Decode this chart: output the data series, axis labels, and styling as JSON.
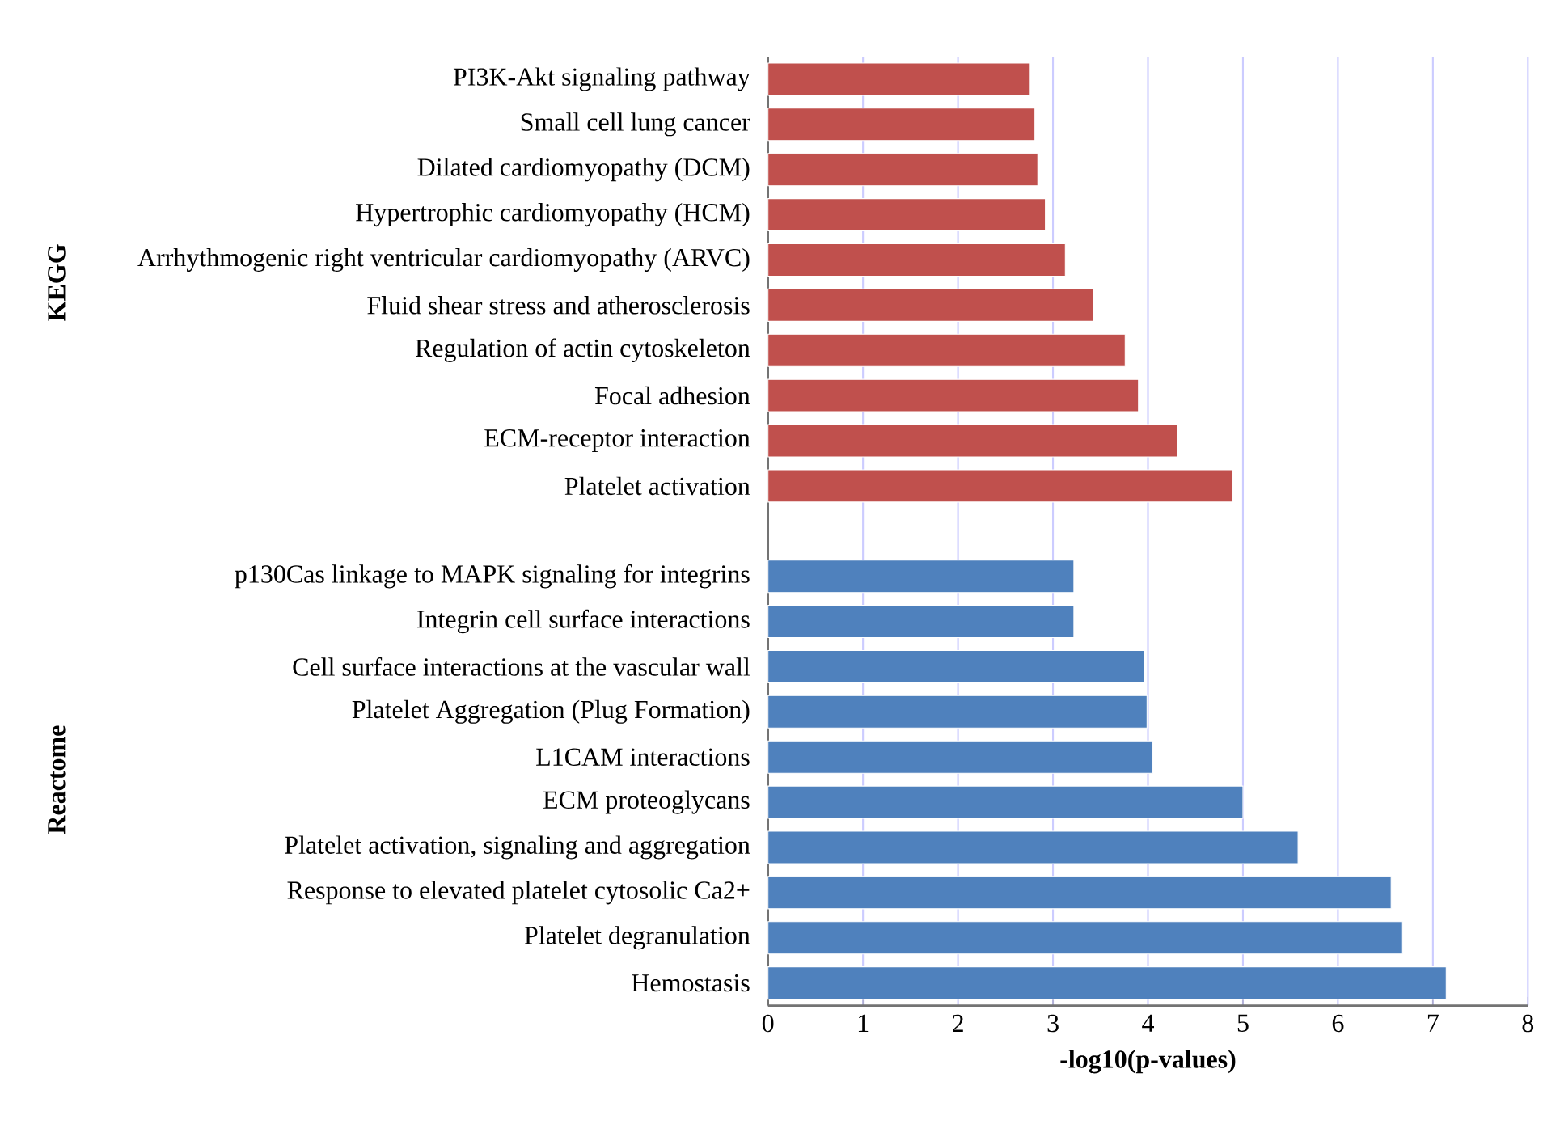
{
  "chart_data": {
    "type": "bar",
    "orientation": "horizontal",
    "xlabel": "-log10(p-values)",
    "categories": [
      "PI3K-Akt signaling pathway",
      "Small cell lung cancer",
      "Dilated cardiomyopathy (DCM)",
      "Hypertrophic cardiomyopathy (HCM)",
      "Arrhythmogenic right ventricular cardiomyopathy (ARVC)",
      "Fluid shear stress and atherosclerosis",
      "Regulation of actin cytoskeleton",
      "Focal adhesion",
      "ECM-receptor interaction",
      "Platelet activation",
      null,
      "p130Cas linkage to MAPK signaling for integrins",
      "Integrin cell surface interactions",
      "Cell surface interactions at the vascular wall",
      "Platelet Aggregation (Plug Formation)",
      "L1CAM interactions",
      "ECM proteoglycans",
      "Platelet activation, signaling and aggregation",
      "Response to elevated platelet cytosolic Ca2+",
      "Platelet degranulation",
      "Hemostasis"
    ],
    "values": [
      2.76,
      2.81,
      2.84,
      2.92,
      3.13,
      3.43,
      3.76,
      3.9,
      4.31,
      4.89,
      null,
      3.22,
      3.22,
      3.96,
      3.99,
      4.05,
      5.0,
      5.58,
      6.56,
      6.68,
      7.14
    ],
    "colors": [
      "#c0504d",
      "#c0504d",
      "#c0504d",
      "#c0504d",
      "#c0504d",
      "#c0504d",
      "#c0504d",
      "#c0504d",
      "#c0504d",
      "#c0504d",
      null,
      "#4f81bd",
      "#4f81bd",
      "#4f81bd",
      "#4f81bd",
      "#4f81bd",
      "#4f81bd",
      "#4f81bd",
      "#4f81bd",
      "#4f81bd",
      "#4f81bd"
    ],
    "xlim": [
      0,
      8
    ],
    "xticks": [
      0,
      1,
      2,
      3,
      4,
      5,
      6,
      7,
      8
    ],
    "grid": "x",
    "annotations": [
      "KEGG",
      "Reactome"
    ]
  }
}
